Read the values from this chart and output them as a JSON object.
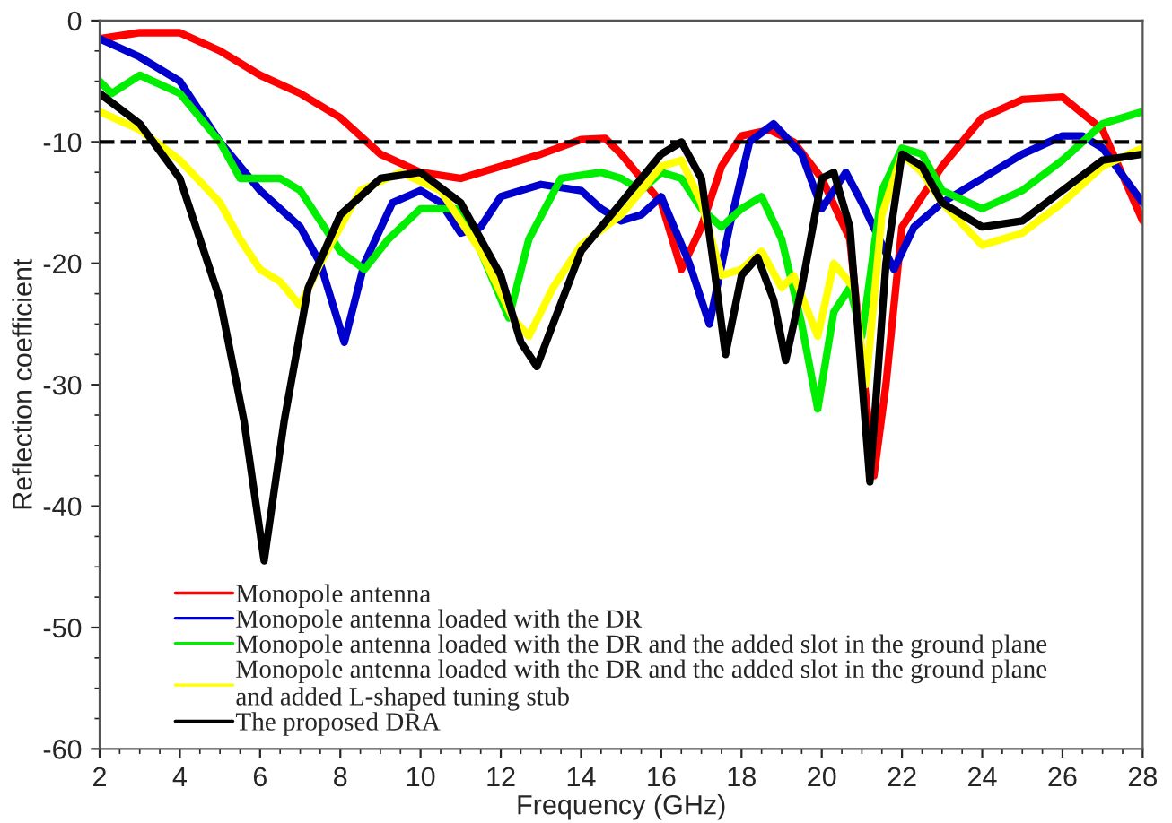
{
  "chart_data": {
    "type": "line",
    "xlabel": "Frequency (GHz)",
    "ylabel": "Reflection coefficient",
    "xlim": [
      2,
      28
    ],
    "xticks": [
      2,
      4,
      6,
      8,
      10,
      12,
      14,
      16,
      18,
      20,
      22,
      24,
      26,
      28
    ],
    "ylim": [
      -60,
      0
    ],
    "yticks": [
      -60,
      -50,
      -40,
      -30,
      -20,
      -10,
      0
    ],
    "legend": "bottom left",
    "grid": false,
    "line_style": "solid",
    "marker": "none",
    "ref_lines": [
      {
        "axis": "y",
        "value": -10,
        "color": "#000000",
        "line_style": "dashed"
      }
    ],
    "series": [
      {
        "name": "Monopole antenna",
        "color": "#ff0000",
        "x": [
          2,
          3,
          4,
          5,
          6,
          7,
          8,
          9,
          10,
          11,
          12,
          13,
          14,
          14.6,
          15,
          16,
          16.5,
          17,
          17.5,
          18,
          18.7,
          19.3,
          20,
          20.7,
          21.3,
          21.6,
          22,
          23,
          24,
          25,
          26,
          27,
          28
        ],
        "values": [
          -1.5,
          -1,
          -1,
          -2.5,
          -4.5,
          -6,
          -8,
          -11,
          -12.5,
          -13,
          -12,
          -11,
          -9.8,
          -9.7,
          -11,
          -15,
          -20.5,
          -17,
          -12,
          -9.5,
          -9,
          -10,
          -13,
          -18,
          -37.5,
          -30,
          -17,
          -12,
          -8,
          -6.5,
          -6.3,
          -9,
          -16.5
        ]
      },
      {
        "name": "Monopole antenna loaded with the DR",
        "color": "#0000cc",
        "x": [
          2,
          3,
          4,
          5,
          6,
          7,
          7.5,
          8.1,
          8.6,
          9.3,
          10,
          10.5,
          11,
          11.5,
          12,
          13,
          14,
          14.5,
          15,
          15.5,
          16,
          16.7,
          17.2,
          17.7,
          18.2,
          18.8,
          19.5,
          20,
          20.6,
          21,
          21.8,
          22.3,
          23,
          24,
          25,
          26,
          26.5,
          27,
          28
        ],
        "values": [
          -1.5,
          -3,
          -5,
          -10,
          -14,
          -17,
          -20,
          -26.5,
          -20,
          -15,
          -14,
          -15,
          -17.5,
          -17,
          -14.5,
          -13.5,
          -14,
          -15.5,
          -16.5,
          -16,
          -14.5,
          -20,
          -25,
          -17,
          -10,
          -8.5,
          -11,
          -15.5,
          -12.5,
          -15,
          -20.5,
          -17,
          -15,
          -13,
          -11,
          -9.5,
          -9.5,
          -10.5,
          -15
        ]
      },
      {
        "name": "Monopole antenna loaded with the DR and the added slot in the ground plane",
        "color": "#00ee00",
        "x": [
          2,
          2.3,
          3,
          4,
          5,
          5.5,
          6.5,
          7,
          8,
          8.6,
          9.2,
          10,
          11,
          11.5,
          12.2,
          12.7,
          13.5,
          14.5,
          15,
          15.5,
          16,
          16.5,
          17,
          17.5,
          18,
          18.5,
          19,
          19.5,
          19.9,
          20.3,
          20.7,
          21,
          21.5,
          22,
          22.5,
          23,
          24,
          25,
          26,
          27,
          28
        ],
        "values": [
          -5,
          -6,
          -4.5,
          -6,
          -10,
          -13,
          -13,
          -14,
          -19,
          -20.5,
          -18,
          -15.5,
          -15.5,
          -19,
          -24.5,
          -18,
          -13,
          -12.5,
          -13,
          -14,
          -12.5,
          -13,
          -15.5,
          -17,
          -15.5,
          -14.5,
          -18,
          -25,
          -32,
          -24,
          -22,
          -26,
          -14,
          -10.5,
          -11,
          -14,
          -15.5,
          -14,
          -11.5,
          -8.5,
          -7.5
        ]
      },
      {
        "name": "Monopole antenna loaded with the DR and the added slot in the ground plane\nand added L-shaped tuning stub",
        "color": "#ffff00",
        "x": [
          2,
          3,
          4,
          5,
          5.5,
          6,
          6.5,
          7,
          7.5,
          8.5,
          9.5,
          10.5,
          11.5,
          12.3,
          12.7,
          13.3,
          14,
          15,
          15.5,
          16,
          16.5,
          17,
          17.5,
          18,
          18.5,
          19,
          19.3,
          19.9,
          20.3,
          20.8,
          21.1,
          21.5,
          22,
          22.5,
          23,
          24,
          25,
          26,
          27,
          28
        ],
        "values": [
          -7.5,
          -9,
          -11.5,
          -15,
          -18,
          -20.5,
          -21.5,
          -23.5,
          -20,
          -14,
          -12.5,
          -14,
          -19,
          -24.5,
          -26,
          -22,
          -18.5,
          -16,
          -14,
          -12,
          -11.5,
          -15,
          -21,
          -20.5,
          -19,
          -22,
          -21,
          -26,
          -20,
          -22,
          -30,
          -16,
          -11,
          -12.5,
          -15,
          -18.5,
          -17.5,
          -15,
          -12,
          -10.5
        ]
      },
      {
        "name": "The proposed DRA",
        "color": "#000000",
        "x": [
          2,
          3,
          4,
          5,
          5.6,
          6.1,
          6.6,
          7.2,
          8,
          9,
          10,
          11,
          12,
          12.5,
          12.9,
          13.3,
          14,
          15,
          16,
          16.5,
          17,
          17.3,
          17.6,
          18,
          18.4,
          18.8,
          19.1,
          19.5,
          20,
          20.3,
          20.7,
          21.2,
          21.6,
          22,
          22.5,
          23,
          24,
          25,
          26,
          27,
          28
        ],
        "values": [
          -6,
          -8.5,
          -13,
          -23,
          -33,
          -44.5,
          -33,
          -22,
          -16,
          -13,
          -12.5,
          -15,
          -21,
          -26.5,
          -28.5,
          -25,
          -19,
          -15,
          -11,
          -10,
          -13,
          -20,
          -27.5,
          -21,
          -19.5,
          -23,
          -28,
          -22,
          -13,
          -12.5,
          -17,
          -38,
          -20,
          -11,
          -12,
          -15,
          -17,
          -16.5,
          -14,
          -11.5,
          -11
        ]
      }
    ]
  }
}
